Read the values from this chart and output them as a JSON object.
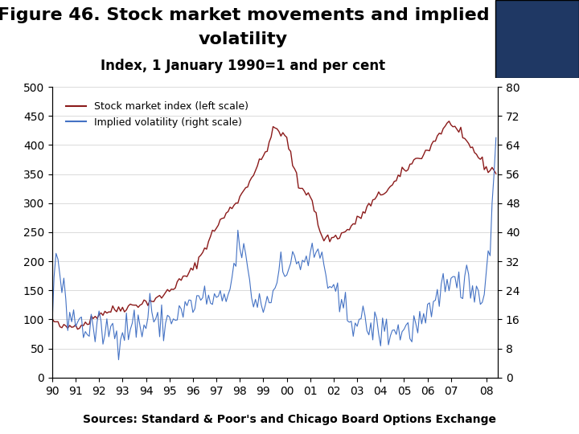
{
  "title_line1": "Figure 46. Stock market movements and implied",
  "title_line2": "volatility",
  "subtitle": "Index, 1 January 1990=1 and per cent",
  "legend_stock": "Stock market index (left scale)",
  "legend_vol": "Implied volatility (right scale)",
  "source": "Sources: Standard & Poor's and Chicago Board Options Exchange",
  "stock_color": "#8B1A1A",
  "vol_color": "#4472C4",
  "left_ylim": [
    0,
    500
  ],
  "right_ylim": [
    0,
    80
  ],
  "left_yticks": [
    0,
    50,
    100,
    150,
    200,
    250,
    300,
    350,
    400,
    450,
    500
  ],
  "right_yticks": [
    0,
    8,
    16,
    24,
    32,
    40,
    48,
    56,
    64,
    72,
    80
  ],
  "xtick_positions": [
    0,
    12,
    24,
    36,
    48,
    60,
    72,
    84,
    96,
    108,
    120,
    132,
    144,
    156,
    168,
    180,
    192,
    204,
    222
  ],
  "xtick_labels": [
    "90",
    "91",
    "92",
    "93",
    "94",
    "95",
    "96",
    "97",
    "98",
    "99",
    "00",
    "01",
    "02",
    "03",
    "04",
    "05",
    "06",
    "07",
    "08"
  ],
  "background_color": "#FFFFFF",
  "grid_color": "#CCCCCC",
  "title_fontsize": 16,
  "subtitle_fontsize": 12,
  "axis_fontsize": 10,
  "legend_fontsize": 9,
  "source_fontsize": 10,
  "header_bar_color": "#1F3864",
  "source_bar_color": "#1F3864"
}
